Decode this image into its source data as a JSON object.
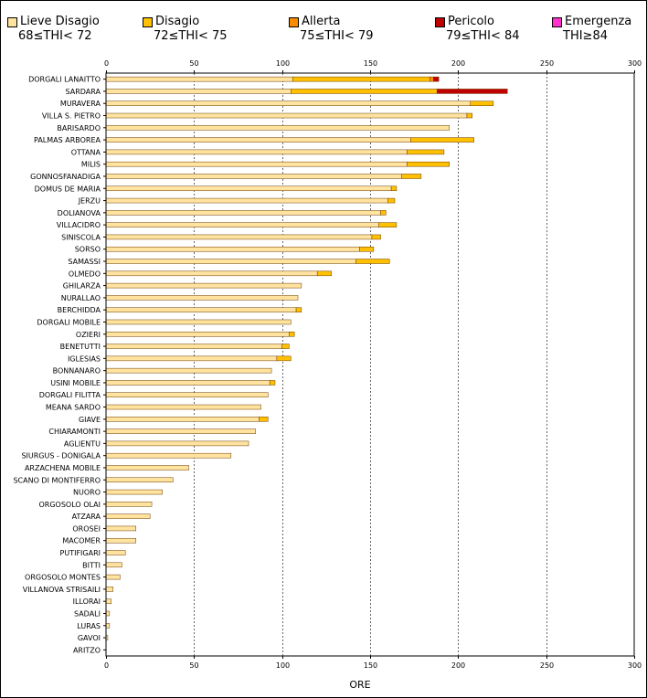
{
  "chart_data": {
    "type": "bar",
    "orientation": "horizontal",
    "stacked": true,
    "xlabel": "ORE",
    "xlim": [
      0,
      300
    ],
    "xticks": [
      "0",
      "50",
      "100",
      "150",
      "200",
      "250",
      "300"
    ],
    "grid": "vertical dashed",
    "legend_position": "top",
    "series": [
      {
        "name": "Lieve Disagio",
        "range": "68≤THI< 72",
        "color": "#FFE39F"
      },
      {
        "name": "Disagio",
        "range": "72≤THI< 75",
        "color": "#FFC000"
      },
      {
        "name": "Allerta",
        "range": "75≤THI< 79",
        "color": "#FF8C00"
      },
      {
        "name": "Pericolo",
        "range": "79≤THI< 84",
        "color": "#C00000"
      },
      {
        "name": "Emergenza",
        "range": "THI≥84",
        "color": "#FF33CC"
      }
    ],
    "categories": [
      "DORGALI LANAITTO",
      "SARDARA",
      "MURAVERA",
      "VILLA S. PIETRO",
      "BARISARDO",
      "PALMAS ARBOREA",
      "OTTANA",
      "MILIS",
      "GONNOSFANADIGA",
      "DOMUS DE MARIA",
      "JERZU",
      "DOLIANOVA",
      "VILLACIDRO",
      "SINISCOLA",
      "SORSO",
      "SAMASSI",
      "OLMEDO",
      "GHILARZA",
      "NURALLAO",
      "BERCHIDDA",
      "DORGALI MOBILE",
      "OZIERI",
      "BENETUTTI",
      "IGLESIAS",
      "BONNANARO",
      "USINI MOBILE",
      "DORGALI FILITTA",
      "MEANA SARDO",
      "GIAVE",
      "CHIARAMONTI",
      "AGLIENTU",
      "SIURGUS - DONIGALA",
      "ARZACHENA MOBILE",
      "SCANO DI MONTIFERRO",
      "NUORO",
      "ORGOSOLO OLAI",
      "ATZARA",
      "OROSEI",
      "MACOMER",
      "PUTIFIGARI",
      "BITTI",
      "ORGOSOLO MONTES",
      "VILLANOVA STRISAILI",
      "ILLORAI",
      "SADALI",
      "LURAS",
      "GAVOI",
      "ARITZO"
    ],
    "values": [
      [
        106,
        78,
        2,
        3,
        0
      ],
      [
        105,
        83,
        0,
        40,
        0
      ],
      [
        207,
        13,
        0,
        0,
        0
      ],
      [
        205,
        3,
        0,
        0,
        0
      ],
      [
        195,
        0,
        0,
        0,
        0
      ],
      [
        173,
        36,
        0,
        0,
        0
      ],
      [
        171,
        21,
        0,
        0,
        0
      ],
      [
        171,
        24,
        0,
        0,
        0
      ],
      [
        168,
        11,
        0,
        0,
        0
      ],
      [
        162,
        3,
        0,
        0,
        0
      ],
      [
        160,
        4,
        0,
        0,
        0
      ],
      [
        156,
        3,
        0,
        0,
        0
      ],
      [
        155,
        10,
        0,
        0,
        0
      ],
      [
        151,
        5,
        0,
        0,
        0
      ],
      [
        144,
        8,
        0,
        0,
        0
      ],
      [
        142,
        19,
        0,
        0,
        0
      ],
      [
        120,
        8,
        0,
        0,
        0
      ],
      [
        111,
        0,
        0,
        0,
        0
      ],
      [
        109,
        0,
        0,
        0,
        0
      ],
      [
        108,
        3,
        0,
        0,
        0
      ],
      [
        105,
        0,
        0,
        0,
        0
      ],
      [
        104,
        3,
        0,
        0,
        0
      ],
      [
        100,
        4,
        0,
        0,
        0
      ],
      [
        97,
        8,
        0,
        0,
        0
      ],
      [
        94,
        0,
        0,
        0,
        0
      ],
      [
        93,
        3,
        0,
        0,
        0
      ],
      [
        92,
        0,
        0,
        0,
        0
      ],
      [
        88,
        0,
        0,
        0,
        0
      ],
      [
        87,
        5,
        0,
        0,
        0
      ],
      [
        85,
        0,
        0,
        0,
        0
      ],
      [
        81,
        0,
        0,
        0,
        0
      ],
      [
        71,
        0,
        0,
        0,
        0
      ],
      [
        47,
        0,
        0,
        0,
        0
      ],
      [
        38,
        0,
        0,
        0,
        0
      ],
      [
        32,
        0,
        0,
        0,
        0
      ],
      [
        26,
        0,
        0,
        0,
        0
      ],
      [
        25,
        0,
        0,
        0,
        0
      ],
      [
        17,
        0,
        0,
        0,
        0
      ],
      [
        17,
        0,
        0,
        0,
        0
      ],
      [
        11,
        0,
        0,
        0,
        0
      ],
      [
        9,
        0,
        0,
        0,
        0
      ],
      [
        8,
        0,
        0,
        0,
        0
      ],
      [
        4,
        0,
        0,
        0,
        0
      ],
      [
        3,
        0,
        0,
        0,
        0
      ],
      [
        2,
        0,
        0,
        0,
        0
      ],
      [
        2,
        0,
        0,
        0,
        0
      ],
      [
        1,
        0,
        0,
        0,
        0
      ],
      [
        0,
        0,
        0,
        0,
        0
      ]
    ]
  }
}
